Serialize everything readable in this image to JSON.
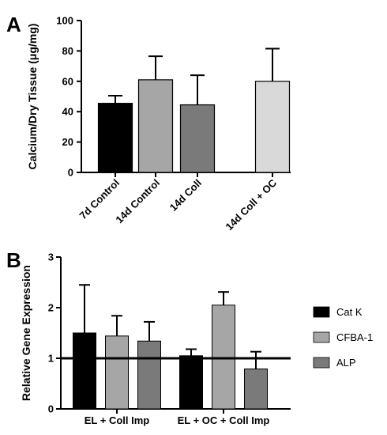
{
  "chart_data": [
    {
      "panel": "A",
      "type": "bar",
      "ylabel": "Calcium/Dry Tissue (μg/mg)",
      "ylim": [
        0,
        100
      ],
      "yticks": [
        0,
        20,
        40,
        60,
        80,
        100
      ],
      "categories": [
        "7d Control",
        "14d Control",
        "14d Coll",
        "14d Coll + OC"
      ],
      "values": [
        45.5,
        61,
        44.5,
        60
      ],
      "errors": [
        5,
        15.5,
        19.5,
        21.5
      ],
      "colors": [
        "#000000",
        "#a6a6a6",
        "#7a7a7a",
        "#d9d9d9"
      ],
      "grid": false
    },
    {
      "panel": "B",
      "type": "bar",
      "ylabel": "Relative Gene Expression",
      "ylim": [
        0,
        3
      ],
      "yticks": [
        0,
        1,
        2,
        3
      ],
      "categories": [
        "EL + Coll Imp",
        "EL + OC + Coll Imp"
      ],
      "reference_line": 1,
      "series": [
        {
          "name": "Cat K",
          "values": [
            1.5,
            1.05
          ],
          "errors": [
            0.95,
            0.13
          ],
          "color": "#000000"
        },
        {
          "name": "CFBA-1",
          "values": [
            1.44,
            2.05
          ],
          "errors": [
            0.4,
            0.26
          ],
          "color": "#a6a6a6"
        },
        {
          "name": "ALP",
          "values": [
            1.34,
            0.79
          ],
          "errors": [
            0.38,
            0.34
          ],
          "color": "#7a7a7a"
        }
      ],
      "legend": "right",
      "grid": false
    }
  ]
}
